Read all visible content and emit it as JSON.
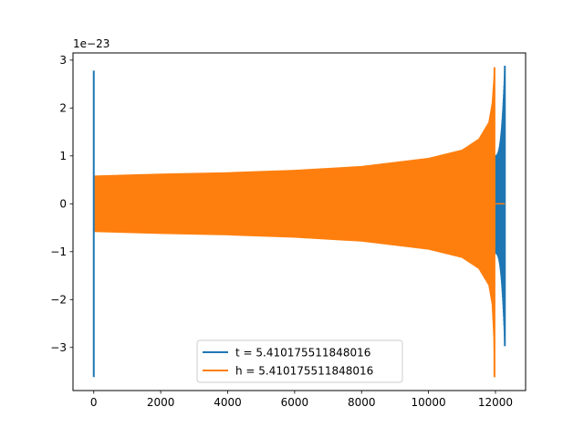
{
  "chart_data": {
    "type": "line",
    "title": "",
    "xlabel": "",
    "ylabel": "",
    "y_offset_label": "1e−23",
    "xlim": [
      -620,
      12900
    ],
    "ylim": [
      -3.9,
      3.15
    ],
    "x_ticks": [
      0,
      2000,
      4000,
      6000,
      8000,
      10000,
      12000
    ],
    "x_tick_labels": [
      "0",
      "2000",
      "4000",
      "6000",
      "8000",
      "10000",
      "12000"
    ],
    "y_ticks": [
      -3,
      -2,
      -1,
      0,
      1,
      2,
      3
    ],
    "y_tick_labels": [
      "−3",
      "−2",
      "−1",
      "0",
      "1",
      "2",
      "3"
    ],
    "grid": false,
    "legend_position": "bottom-center",
    "series": [
      {
        "name": "t = 5.410175511848016",
        "color": "#1f77b4",
        "segments": [
          {
            "description": "initial burst",
            "x": 0,
            "y_min": -3.62,
            "y_max": 2.78
          },
          {
            "description": "late burst",
            "x_start": 11980,
            "x_end": 12280,
            "y_min": -2.97,
            "y_max": 2.88
          }
        ]
      },
      {
        "name": "h = 5.410175511848016",
        "color": "#ff7f0e",
        "envelope": {
          "x": [
            0,
            2000,
            4000,
            6000,
            8000,
            10000,
            11000,
            11500,
            11800,
            11900,
            11950,
            11970
          ],
          "upper": [
            0.58,
            0.62,
            0.65,
            0.7,
            0.78,
            0.95,
            1.12,
            1.35,
            1.7,
            2.1,
            2.6,
            2.85
          ],
          "lower": [
            -0.58,
            -0.62,
            -0.65,
            -0.7,
            -0.78,
            -0.95,
            -1.12,
            -1.35,
            -1.7,
            -2.1,
            -2.8,
            -3.62
          ]
        },
        "flat_tail": {
          "x_start": 11980,
          "x_end": 12280,
          "y": 0
        }
      }
    ]
  }
}
